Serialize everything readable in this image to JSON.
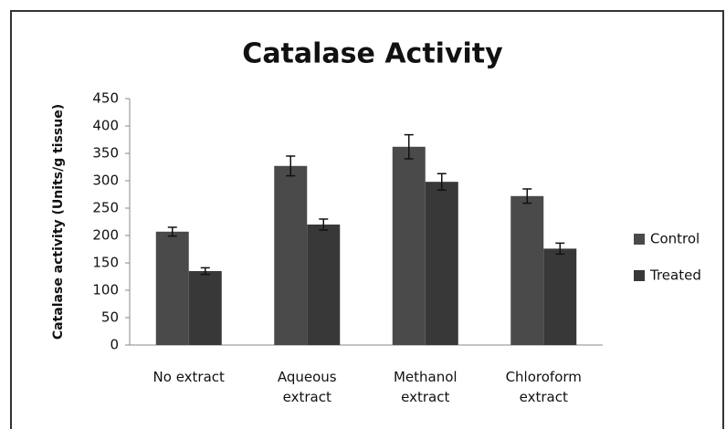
{
  "chart_data": {
    "type": "bar",
    "title": "Catalase Activity",
    "ylabel": "Catalase activity (Units/g tissue)",
    "categories": [
      "No extract",
      "Aqueous extract",
      "Methanol extract",
      "Chloroform extract"
    ],
    "series": [
      {
        "name": "Control",
        "color": "#4a4a4a",
        "values": [
          207,
          327,
          362,
          272
        ],
        "errors": [
          8,
          18,
          22,
          13
        ]
      },
      {
        "name": "Treated",
        "color": "#383838",
        "values": [
          135,
          220,
          298,
          176
        ],
        "errors": [
          6,
          10,
          15,
          10
        ]
      }
    ],
    "ylim": [
      0,
      450
    ],
    "yticks": [
      0,
      50,
      100,
      150,
      200,
      250,
      300,
      350,
      400,
      450
    ],
    "grid": false,
    "legend": "right"
  }
}
